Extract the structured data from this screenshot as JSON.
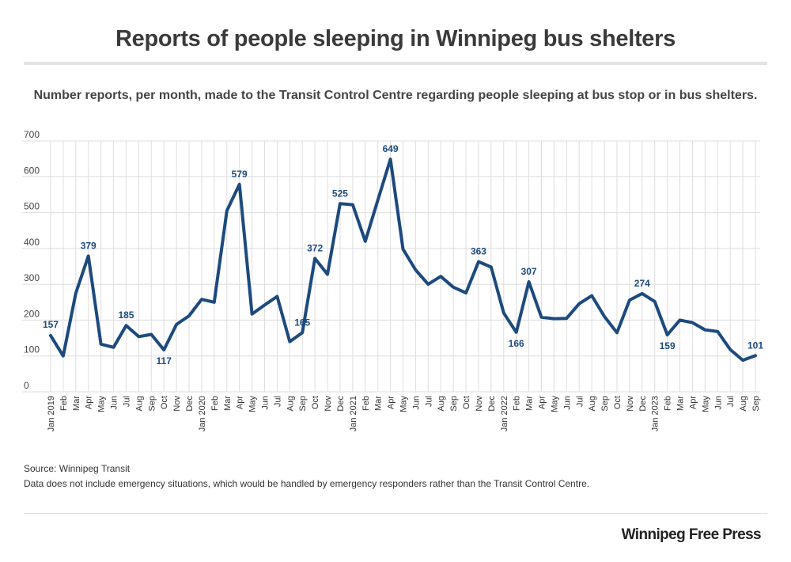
{
  "title": "Reports of people sleeping in Winnipeg bus shelters",
  "subtitle": "Number reports, per month, made to the Transit Control Centre regarding people sleeping at bus stop or in bus shelters.",
  "source": "Source: Winnipeg Transit",
  "note": "Data does not include emergency situations, which would be handled by emergency responders rather than the Transit Control Centre.",
  "logo": "Winnipeg Free Press",
  "colors": {
    "line": "#1d4a7e",
    "grid": "#dedede"
  },
  "chart_data": {
    "type": "line",
    "title": "Reports of people sleeping in Winnipeg bus shelters",
    "xlabel": "",
    "ylabel": "",
    "ylim": [
      0,
      700
    ],
    "yticks": [
      0,
      100,
      200,
      300,
      400,
      500,
      600,
      700
    ],
    "grid": true,
    "categories": [
      "Jan 2019",
      "Feb",
      "Mar",
      "Apr",
      "May",
      "Jun",
      "Jul",
      "Aug",
      "Sep",
      "Oct",
      "Nov",
      "Dec",
      "Jan 2020",
      "Feb",
      "Mar",
      "Apr",
      "May",
      "Jun",
      "Jul",
      "Aug",
      "Sep",
      "Oct",
      "Nov",
      "Dec",
      "Jan 2021",
      "Feb",
      "Mar",
      "Apr",
      "May",
      "Jun",
      "Jul",
      "Aug",
      "Sep",
      "Oct",
      "Nov",
      "Dec",
      "Jan 2022",
      "Feb",
      "Mar",
      "Apr",
      "May",
      "Jun",
      "Jul",
      "Aug",
      "Sep",
      "Oct",
      "Nov",
      "Dec",
      "Jan 2023",
      "Feb",
      "Mar",
      "Apr",
      "May",
      "Jun",
      "Jul",
      "Aug",
      "Sep"
    ],
    "series": [
      {
        "name": "Reports",
        "values": [
          157,
          100,
          275,
          379,
          133,
          124,
          185,
          154,
          160,
          117,
          188,
          212,
          258,
          250,
          505,
          579,
          217,
          242,
          266,
          140,
          165,
          372,
          328,
          525,
          522,
          420,
          535,
          649,
          398,
          340,
          300,
          322,
          292,
          276,
          363,
          348,
          220,
          166,
          307,
          208,
          204,
          205,
          246,
          268,
          210,
          165,
          256,
          274,
          252,
          159,
          200,
          193,
          173,
          168,
          118,
          88,
          101
        ]
      }
    ],
    "annotations": [
      {
        "index": 0,
        "label": "157"
      },
      {
        "index": 3,
        "label": "379"
      },
      {
        "index": 6,
        "label": "185"
      },
      {
        "index": 9,
        "label": "117"
      },
      {
        "index": 15,
        "label": "579"
      },
      {
        "index": 20,
        "label": "165"
      },
      {
        "index": 21,
        "label": "372"
      },
      {
        "index": 23,
        "label": "525"
      },
      {
        "index": 27,
        "label": "649"
      },
      {
        "index": 34,
        "label": "363"
      },
      {
        "index": 37,
        "label": "166"
      },
      {
        "index": 38,
        "label": "307"
      },
      {
        "index": 47,
        "label": "274"
      },
      {
        "index": 49,
        "label": "159"
      },
      {
        "index": 56,
        "label": "101"
      }
    ]
  }
}
